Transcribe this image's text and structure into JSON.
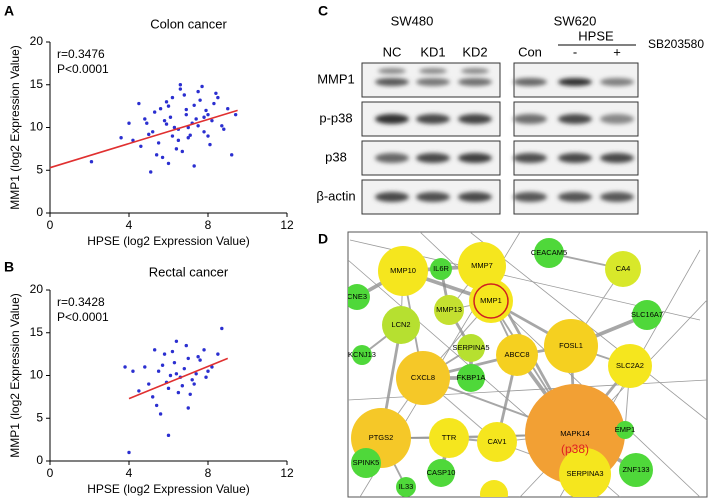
{
  "panel_labels": [
    "A",
    "B",
    "C",
    "D"
  ],
  "chart_data": [
    {
      "type": "scatter",
      "title": "Colon cancer",
      "x_label": "HPSE (log2 Expression Value)",
      "y_label": "MMP1 (log2 Expression Value)",
      "annotations": [
        "r=0.3476",
        "P<0.0001"
      ],
      "color": "#2b2fd0",
      "fit_color": "#e03030",
      "xlim": [
        0,
        12
      ],
      "ylim": [
        0,
        20
      ],
      "xticks": [
        0,
        4,
        8,
        12
      ],
      "yticks": [
        0,
        5,
        10,
        15,
        20
      ],
      "x": [
        5.2,
        5.8,
        6.1,
        6.5,
        6.9,
        7.2,
        7.6,
        8.0,
        8.3,
        8.7,
        5.5,
        6.0,
        6.4,
        6.8,
        7.1,
        7.5,
        7.9,
        8.2,
        4.6,
        4.9,
        5.3,
        5.7,
        6.2,
        6.6,
        7.0,
        7.4,
        7.8,
        8.5,
        9.0,
        9.4,
        4.2,
        4.5,
        5.0,
        5.4,
        5.9,
        6.3,
        6.7,
        7.3,
        7.7,
        8.1,
        8.8,
        3.6,
        2.1,
        4.0,
        5.1,
        6.0,
        6.9,
        7.5,
        8.4,
        9.2,
        5.6,
        6.5,
        7.0,
        7.8,
        4.8,
        6.2,
        7.3,
        8.0,
        5.9,
        6.6
      ],
      "y": [
        9.5,
        10.8,
        11.2,
        9.8,
        12.1,
        10.5,
        13.2,
        11.5,
        12.8,
        10.2,
        8.2,
        12.5,
        7.5,
        13.8,
        9.1,
        14.2,
        12.0,
        10.8,
        7.8,
        10.5,
        11.8,
        6.5,
        9.0,
        14.5,
        8.8,
        11.0,
        9.5,
        13.5,
        12.2,
        11.5,
        8.5,
        12.8,
        9.2,
        6.8,
        13.0,
        10.0,
        7.2,
        12.6,
        14.8,
        8.0,
        9.8,
        8.8,
        6.0,
        10.5,
        4.8,
        5.8,
        11.5,
        10.2,
        14.0,
        6.8,
        12.2,
        8.5,
        10.0,
        11.2,
        11.0,
        13.5,
        5.5,
        9.0,
        10.4,
        15.0
      ],
      "fit": {
        "x": [
          0,
          9.5
        ],
        "y": [
          5.3,
          12
        ]
      }
    },
    {
      "type": "scatter",
      "title": "Rectal cancer",
      "x_label": "HPSE (log2 Expression Value)",
      "y_label": "MMP1 (log2 Expression Value)",
      "annotations": [
        "r=0.3428",
        "P<0.0001"
      ],
      "color": "#2b2fd0",
      "fit_color": "#e03030",
      "xlim": [
        0,
        12
      ],
      "ylim": [
        0,
        20
      ],
      "xticks": [
        0,
        4,
        8,
        12
      ],
      "yticks": [
        0,
        5,
        10,
        15,
        20
      ],
      "x": [
        5.0,
        5.5,
        6.0,
        6.3,
        6.6,
        7.0,
        7.4,
        7.8,
        8.2,
        8.7,
        5.2,
        5.8,
        6.1,
        6.5,
        6.9,
        7.2,
        7.6,
        8.0,
        4.5,
        4.8,
        5.4,
        5.9,
        6.4,
        6.8,
        7.1,
        7.5,
        4.2,
        5.6,
        6.2,
        7.3,
        6.0,
        6.7,
        5.3,
        7.9,
        8.5,
        4.0,
        3.8,
        6.4,
        7.0,
        5.7
      ],
      "y": [
        9.0,
        10.5,
        8.5,
        11.5,
        9.8,
        12.0,
        10.2,
        13.0,
        11.0,
        15.5,
        7.5,
        12.5,
        10.0,
        8.0,
        13.5,
        9.5,
        11.8,
        10.5,
        8.2,
        11.0,
        6.5,
        9.2,
        14.0,
        10.8,
        7.8,
        12.2,
        10.5,
        5.5,
        12.8,
        9.0,
        3.0,
        8.8,
        13.0,
        9.8,
        12.5,
        1.0,
        11.0,
        10.2,
        6.2,
        11.2
      ],
      "fit": {
        "x": [
          4,
          9
        ],
        "y": [
          7.3,
          12
        ]
      }
    }
  ],
  "blot": {
    "cell_lines": [
      "SW480",
      "SW620"
    ],
    "lanes": [
      "NC",
      "KD1",
      "KD2",
      "Con",
      "-",
      "+"
    ],
    "group": "HPSE",
    "treatment": "SB203580",
    "rows": [
      "MMP1",
      "p-p38",
      "p38",
      "β-actin"
    ]
  },
  "network": {
    "nodes": [
      "MMP7",
      "CEACAM5",
      "CA4",
      "MMP10",
      "IL6R",
      "MMP1",
      "CNE3",
      "LCN2",
      "MMP13",
      "SLC16A7",
      "SERPINA5",
      "ABCC8",
      "FOSL1",
      "KCNJ13",
      "CXCL8",
      "FKBP1A",
      "SLC2A2",
      "PTGS2",
      "MAPK14",
      "TTR",
      "CAV1",
      "EMP1",
      "SERPINA3",
      "SPINK5",
      "CASP10",
      "IL33",
      "ZNF133"
    ],
    "sublabel": "(p38)"
  }
}
